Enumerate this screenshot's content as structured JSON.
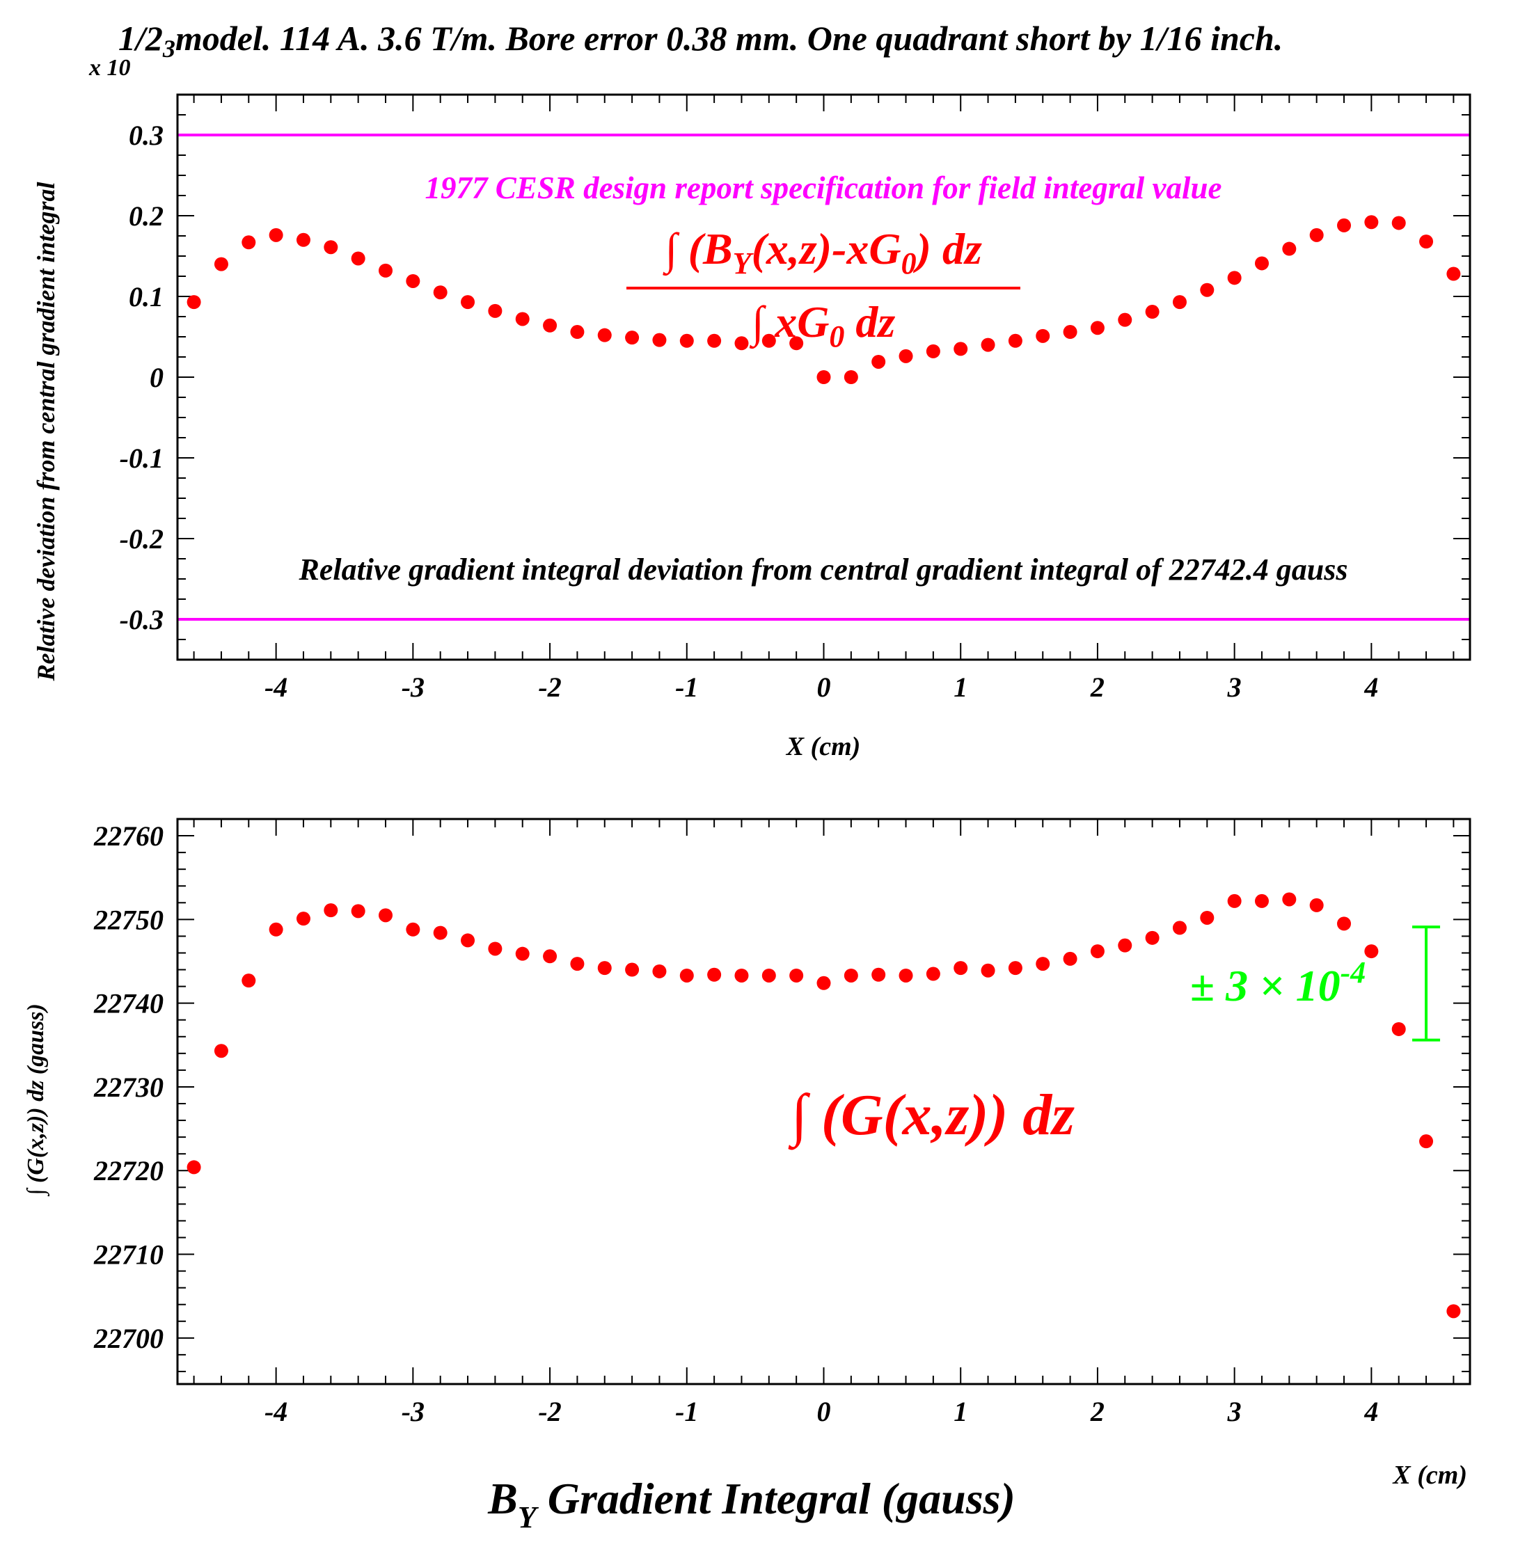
{
  "figure": {
    "title_main": "1/2",
    "title_sub": "3",
    "title_rest": "model. 114 A. 3.6 T/m. Bore error 0.38 mm. One quadrant short by 1/16 inch.",
    "bottom_title_main": "B",
    "bottom_title_sub": "Y",
    "bottom_title_rest": " Gradient Integral (gauss)",
    "colors": {
      "points": "#ff0000",
      "spec": "#ff00ff",
      "errorbar": "#00ff00",
      "axis": "#000000"
    }
  },
  "chart_data": [
    {
      "type": "scatter",
      "multiplier_label": "x 10",
      "ylabel": "Relative deviation from central gradient integral",
      "xlabel": "X (cm)",
      "xlim": [
        -4.72,
        4.72
      ],
      "ylim": [
        -0.35,
        0.35
      ],
      "xticks": [
        -4,
        -3,
        -2,
        -1,
        0,
        1,
        2,
        3,
        4
      ],
      "yticks": [
        -0.3,
        -0.2,
        -0.1,
        0,
        0.1,
        0.2,
        0.3
      ],
      "ytick_labels": [
        "-0.3",
        "-0.2",
        "-0.1",
        "0",
        "0.1",
        "0.2",
        "0.3"
      ],
      "annotations": {
        "spec_label": "1977 CESR design report specification for field integral value",
        "formula_numerator": "∫ (B",
        "formula_numerator_sub": "Y",
        "formula_numerator_mid": "(x,z)-xG",
        "formula_numerator_sub2": "0",
        "formula_numerator_end": ") dz",
        "formula_denominator": "∫ xG",
        "formula_denominator_sub": "0",
        "formula_denominator_end": " dz",
        "bottom_label": "Relative gradient integral deviation from central gradient integral  of 22742.4 gauss"
      },
      "spec_lines": [
        0.3,
        -0.3
      ],
      "x": [
        -4.6,
        -4.4,
        -4.2,
        -4.0,
        -3.8,
        -3.6,
        -3.4,
        -3.2,
        -3.0,
        -2.8,
        -2.6,
        -2.4,
        -2.2,
        -2.0,
        -1.8,
        -1.6,
        -1.4,
        -1.2,
        -1.0,
        -0.8,
        -0.6,
        -0.4,
        -0.2,
        0.0,
        0.2,
        0.4,
        0.6,
        0.8,
        1.0,
        1.2,
        1.4,
        1.6,
        1.8,
        2.0,
        2.2,
        2.4,
        2.6,
        2.8,
        3.0,
        3.2,
        3.4,
        3.6,
        3.8,
        4.0,
        4.2,
        4.4,
        4.6
      ],
      "y": [
        0.093,
        0.14,
        0.167,
        0.176,
        0.17,
        0.161,
        0.147,
        0.132,
        0.119,
        0.105,
        0.093,
        0.082,
        0.072,
        0.064,
        0.056,
        0.052,
        0.049,
        0.046,
        0.045,
        0.045,
        0.042,
        0.045,
        0.042,
        0.0,
        0.0,
        0.019,
        0.026,
        0.032,
        0.035,
        0.04,
        0.045,
        0.051,
        0.056,
        0.061,
        0.071,
        0.081,
        0.093,
        0.108,
        0.123,
        0.141,
        0.159,
        0.176,
        0.188,
        0.192,
        0.191,
        0.168,
        0.128
      ]
    },
    {
      "type": "scatter",
      "ylabel": "∫ (G(x,z)) dz (gauss)",
      "xlabel": "X (cm)",
      "xlim": [
        -4.72,
        4.72
      ],
      "ylim": [
        22694.5,
        22762
      ],
      "xticks": [
        -4,
        -3,
        -2,
        -1,
        0,
        1,
        2,
        3,
        4
      ],
      "yticks": [
        22700,
        22710,
        22720,
        22730,
        22740,
        22750,
        22760
      ],
      "ytick_labels": [
        "22700",
        "22710",
        "22720",
        "22730",
        "22740",
        "22750",
        "22760"
      ],
      "annotations": {
        "formula": "∫ (G(x,z)) dz",
        "error_label": "± 3 × 10",
        "error_exponent": "-4"
      },
      "error_bar": {
        "x": 4.4,
        "low": 22735.6,
        "high": 22749.1
      },
      "x": [
        -4.6,
        -4.4,
        -4.2,
        -4.0,
        -3.8,
        -3.6,
        -3.4,
        -3.2,
        -3.0,
        -2.8,
        -2.6,
        -2.4,
        -2.2,
        -2.0,
        -1.8,
        -1.6,
        -1.4,
        -1.2,
        -1.0,
        -0.8,
        -0.6,
        -0.4,
        -0.2,
        0.0,
        0.2,
        0.4,
        0.6,
        0.8,
        1.0,
        1.2,
        1.4,
        1.6,
        1.8,
        2.0,
        2.2,
        2.4,
        2.6,
        2.8,
        3.0,
        3.2,
        3.4,
        3.6,
        3.8,
        4.0,
        4.2,
        4.4,
        4.6
      ],
      "y": [
        22720.4,
        22734.3,
        22742.7,
        22748.8,
        22750.1,
        22751.1,
        22751.0,
        22750.5,
        22748.8,
        22748.4,
        22747.5,
        22746.5,
        22745.9,
        22745.6,
        22744.7,
        22744.2,
        22744.0,
        22743.8,
        22743.3,
        22743.4,
        22743.3,
        22743.3,
        22743.3,
        22742.4,
        22743.3,
        22743.4,
        22743.3,
        22743.5,
        22744.2,
        22743.9,
        22744.2,
        22744.7,
        22745.3,
        22746.2,
        22746.9,
        22747.8,
        22749.0,
        22750.2,
        22752.2,
        22752.2,
        22752.4,
        22751.7,
        22749.5,
        22746.2,
        22736.9,
        22723.5,
        22703.2
      ]
    }
  ]
}
